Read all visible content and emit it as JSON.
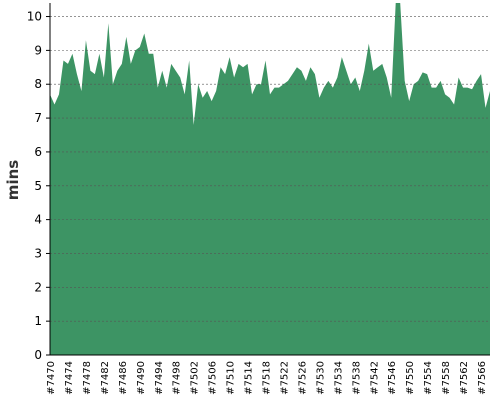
{
  "chart_data": {
    "type": "area",
    "ylabel": "mins",
    "color": "#3d9464",
    "categories": [
      "#7470",
      null,
      null,
      null,
      "#7474",
      null,
      null,
      null,
      "#7478",
      null,
      null,
      null,
      "#7482",
      null,
      null,
      null,
      "#7486",
      null,
      null,
      null,
      "#7490",
      null,
      null,
      null,
      "#7494",
      null,
      null,
      null,
      "#7498",
      null,
      null,
      null,
      "#7502",
      null,
      null,
      null,
      "#7506",
      null,
      null,
      null,
      "#7510",
      null,
      null,
      null,
      "#7514",
      null,
      null,
      null,
      "#7518",
      null,
      null,
      null,
      "#7522",
      null,
      null,
      null,
      "#7526",
      null,
      null,
      null,
      "#7530",
      null,
      null,
      null,
      "#7534",
      null,
      null,
      null,
      "#7538",
      null,
      null,
      null,
      "#7542",
      null,
      null,
      null,
      "#7546",
      null,
      null,
      null,
      "#7550",
      null,
      null,
      null,
      "#7554",
      null,
      null,
      null,
      "#7558",
      null,
      null,
      null,
      "#7562",
      null,
      null,
      null,
      "#7566",
      null,
      null
    ],
    "values": [
      7.7,
      7.4,
      7.7,
      8.7,
      8.6,
      8.9,
      8.3,
      7.8,
      9.3,
      8.4,
      8.3,
      8.9,
      8.2,
      9.8,
      8.0,
      8.4,
      8.6,
      9.4,
      8.6,
      9.0,
      9.1,
      9.5,
      8.9,
      8.9,
      7.9,
      8.4,
      7.9,
      8.6,
      8.4,
      8.2,
      7.7,
      8.7,
      6.8,
      8.0,
      7.6,
      7.8,
      7.5,
      7.8,
      8.5,
      8.3,
      8.8,
      8.2,
      8.6,
      8.5,
      8.6,
      7.7,
      8.0,
      8.0,
      8.7,
      7.7,
      7.9,
      7.9,
      8.0,
      8.1,
      8.3,
      8.5,
      8.4,
      8.1,
      8.5,
      8.3,
      7.6,
      7.9,
      8.1,
      7.9,
      8.2,
      8.8,
      8.4,
      8.0,
      8.2,
      7.8,
      8.4,
      9.2,
      8.4,
      8.5,
      8.6,
      8.2,
      7.6,
      10.4,
      10.4,
      8.1,
      7.5,
      8.0,
      8.1,
      8.35,
      8.3,
      7.9,
      7.9,
      8.1,
      7.7,
      7.6,
      7.4,
      8.2,
      7.9,
      7.9,
      7.85,
      8.1,
      8.3,
      7.3,
      7.8
    ],
    "ylim": [
      0,
      10.4
    ],
    "yticks": [
      0,
      1,
      2,
      3,
      4,
      5,
      6,
      7,
      8,
      9,
      10
    ],
    "grid": true
  }
}
